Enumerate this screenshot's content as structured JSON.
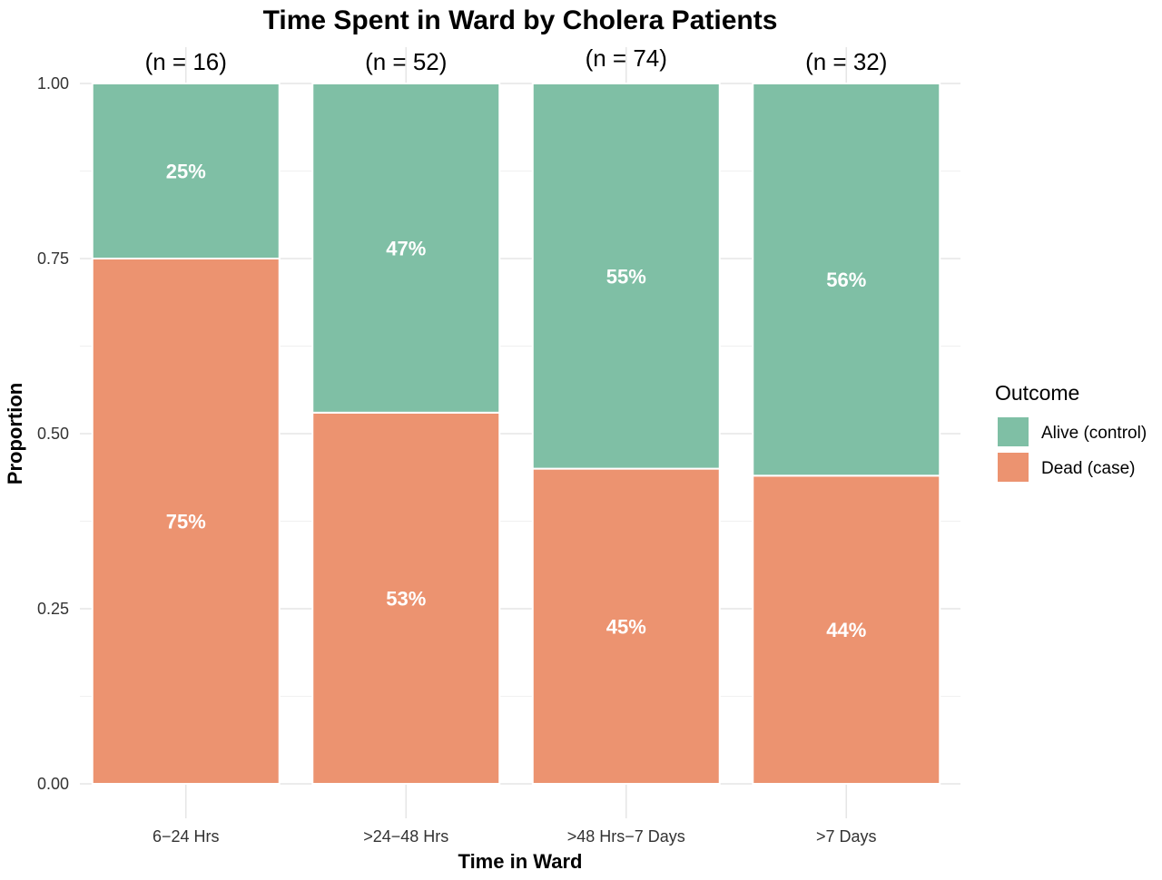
{
  "chart_data": {
    "type": "bar",
    "stacked": true,
    "title": "Time Spent in Ward by Cholera Patients",
    "xlabel": "Time in Ward",
    "ylabel": "Proportion",
    "ylim": [
      0,
      1
    ],
    "yticks": [
      "0.00",
      "0.25",
      "0.50",
      "0.75",
      "1.00"
    ],
    "ytick_values": [
      0,
      0.25,
      0.5,
      0.75,
      1.0
    ],
    "grid": true,
    "categories": [
      "6−24 Hrs",
      ">24−48 Hrs",
      ">48 Hrs−7 Days",
      ">7 Days"
    ],
    "n_labels": [
      "(n = 16)",
      "(n = 52)",
      "(n = 74)",
      "(n = 32)"
    ],
    "series": [
      {
        "name": "Dead (case)",
        "color": "#ec9370",
        "values": [
          0.75,
          0.53,
          0.45,
          0.44
        ],
        "labels": [
          "75%",
          "53%",
          "45%",
          "44%"
        ]
      },
      {
        "name": "Alive (control)",
        "color": "#7fbfa5",
        "values": [
          0.25,
          0.47,
          0.55,
          0.56
        ],
        "labels": [
          "25%",
          "47%",
          "55%",
          "56%"
        ]
      }
    ],
    "legend": {
      "title": "Outcome",
      "position": "right",
      "entries": [
        "Alive (control)",
        "Dead (case)"
      ]
    }
  }
}
